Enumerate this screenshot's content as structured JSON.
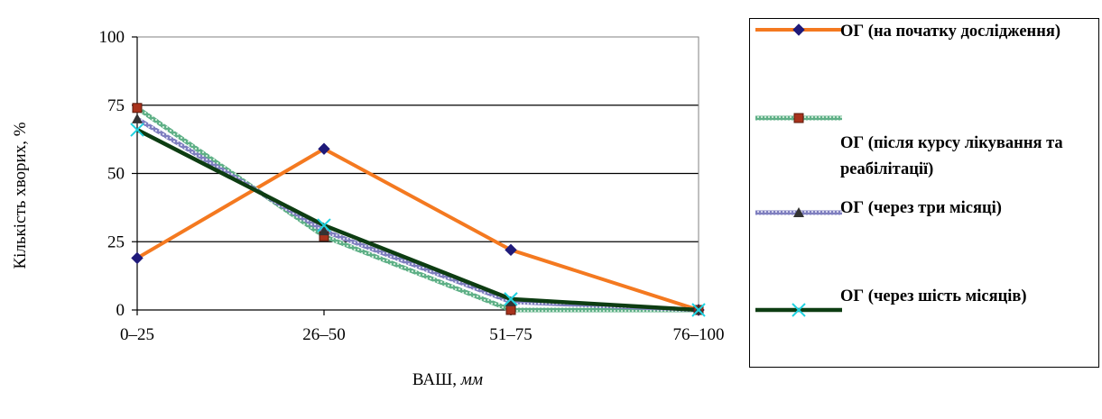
{
  "chart_data": {
    "type": "line",
    "categories": [
      "0–25",
      "26–50",
      "51–75",
      "76–100"
    ],
    "ylim": [
      0,
      100
    ],
    "yticks": [
      0,
      25,
      50,
      75,
      100
    ],
    "ylabel": "Кількість хворих, %",
    "xlabel": "ВАШ,",
    "xlabel_unit": "мм",
    "grid": "horizontal",
    "legend_position": "right",
    "series": [
      {
        "name": "ОГ (на початку дослідження)",
        "values": [
          19,
          59,
          22,
          0
        ],
        "color": "#f47920",
        "marker": "diamond",
        "marker_color": "#1f1a7a"
      },
      {
        "name": "ОГ (після курсу лікування та реабілітації)",
        "values": [
          74,
          27,
          0,
          0
        ],
        "color": "#5fb087",
        "marker": "square",
        "marker_color": "#a8321c"
      },
      {
        "name": "ОГ (через три місяці)",
        "values": [
          70,
          29,
          3,
          0
        ],
        "color": "#8c8cc4",
        "marker": "triangle",
        "marker_color": "#333333"
      },
      {
        "name": "ОГ (через шість місяців)",
        "values": [
          66,
          31,
          4,
          0
        ],
        "color": "#0d3d12",
        "marker": "x",
        "marker_color": "#1fd2e0"
      }
    ]
  }
}
